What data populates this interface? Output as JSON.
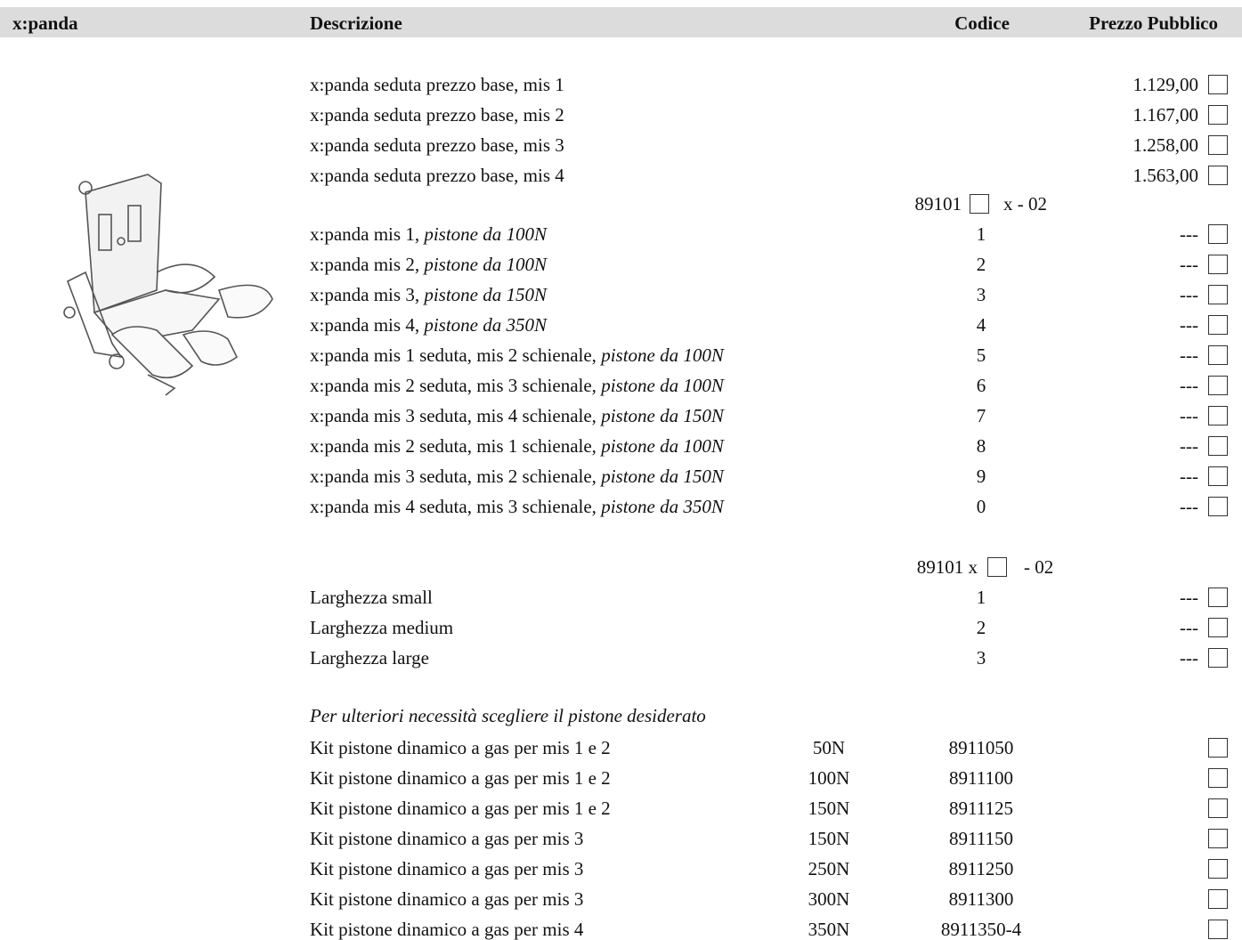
{
  "header": {
    "product": "x:panda",
    "description": "Descrizione",
    "code": "Codice",
    "price": "Prezzo Pubblico"
  },
  "base_prices": [
    {
      "description": "x:panda seduta prezzo base, mis 1",
      "price": "1.129,00"
    },
    {
      "description": "x:panda seduta prezzo base, mis 2",
      "price": "1.167,00"
    },
    {
      "description": "x:panda seduta prezzo base, mis 3",
      "price": "1.258,00"
    },
    {
      "description": "x:panda seduta prezzo base, mis 4",
      "price": "1.563,00"
    }
  ],
  "size_group": {
    "code_before": "89101",
    "code_after": "x - 02",
    "rows": [
      {
        "description": "x:panda mis 1, ",
        "piston": "pistone da 100N",
        "code": "1",
        "price": "---"
      },
      {
        "description": "x:panda mis 2, ",
        "piston": "pistone da 100N",
        "code": "2",
        "price": "---"
      },
      {
        "description": "x:panda mis 3, ",
        "piston": "pistone da 150N",
        "code": "3",
        "price": "---"
      },
      {
        "description": "x:panda mis 4, ",
        "piston": "pistone da 350N",
        "code": "4",
        "price": "---"
      },
      {
        "description": "x:panda mis 1 seduta, mis 2 schienale, ",
        "piston": "pistone da 100N",
        "code": "5",
        "price": "---"
      },
      {
        "description": "x:panda mis 2 seduta, mis 3 schienale, ",
        "piston": "pistone da 100N",
        "code": "6",
        "price": "---"
      },
      {
        "description": "x:panda mis 3 seduta, mis 4 schienale, ",
        "piston": "pistone da 150N",
        "code": "7",
        "price": "---"
      },
      {
        "description": "x:panda mis 2 seduta, mis 1 schienale, ",
        "piston": "pistone da 100N",
        "code": "8",
        "price": "---"
      },
      {
        "description": "x:panda mis 3 seduta, mis 2 schienale, ",
        "piston": "pistone da 150N",
        "code": "9",
        "price": "---"
      },
      {
        "description": "x:panda mis 4 seduta, mis 3 schienale, ",
        "piston": "pistone da 350N",
        "code": "0",
        "price": "---"
      }
    ]
  },
  "width_group": {
    "code_before": "89101 x",
    "code_after": "- 02",
    "rows": [
      {
        "description": "Larghezza small",
        "code": "1",
        "price": "---"
      },
      {
        "description": "Larghezza medium",
        "code": "2",
        "price": "---"
      },
      {
        "description": "Larghezza large",
        "code": "3",
        "price": "---"
      }
    ]
  },
  "pistons": {
    "note": "Per ulteriori necessità scegliere il pistone desiderato",
    "rows": [
      {
        "description": "Kit pistone dinamico a gas per mis 1 e 2",
        "force": "50N",
        "code": "8911050"
      },
      {
        "description": "Kit pistone dinamico a gas per mis 1 e 2",
        "force": "100N",
        "code": "8911100"
      },
      {
        "description": "Kit pistone dinamico a gas per mis 1 e 2",
        "force": "150N",
        "code": "8911125"
      },
      {
        "description": "Kit pistone dinamico a gas per mis 3",
        "force": "150N",
        "code": "8911150"
      },
      {
        "description": "Kit pistone dinamico a gas per mis 3",
        "force": "250N",
        "code": "8911250"
      },
      {
        "description": "Kit pistone dinamico a gas per mis 3",
        "force": "300N",
        "code": "8911300"
      },
      {
        "description": "Kit pistone dinamico a gas per mis 4",
        "force": "350N",
        "code": "8911350-4"
      }
    ]
  }
}
